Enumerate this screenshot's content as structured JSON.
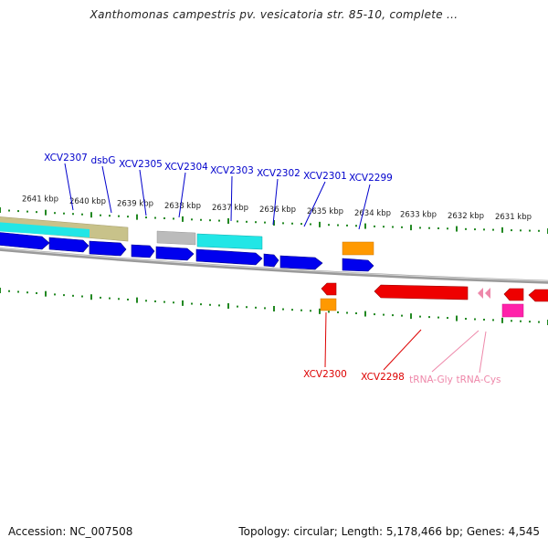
{
  "title": "Xanthomonas campestris pv. vesicatoria str. 85-10, complete ...",
  "footer": {
    "accession": "Accession: NC_007508",
    "summary": "Topology: circular; Length: 5,178,466 bp; Genes: 4,545"
  },
  "colors": {
    "plus_label": "#0000cc",
    "minus_label": "#dd0000",
    "trna_label": "#ee88aa",
    "tick": "#228822",
    "backbone": "#888888"
  },
  "scale_labels": [
    "2641 kbp",
    "2640 kbp",
    "2639 kbp",
    "2638 kbp",
    "2637 kbp",
    "2636 kbp",
    "2635 kbp",
    "2634 kbp",
    "2633 kbp",
    "2632 kbp",
    "2631 kbp"
  ],
  "plus_genes": [
    "XCV2307",
    "dsbG",
    "XCV2305",
    "XCV2304",
    "XCV2303",
    "XCV2302",
    "XCV2301",
    "XCV2299"
  ],
  "minus_genes": [
    "XCV2300",
    "XCV2298",
    "tRNA-Gly",
    "tRNA-Cys"
  ]
}
